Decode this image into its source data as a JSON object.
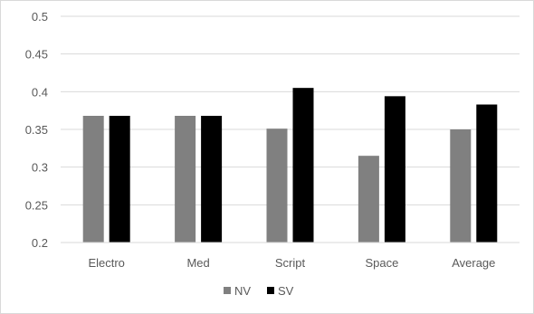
{
  "chart_data": {
    "type": "bar",
    "title": "",
    "xlabel": "",
    "ylabel": "",
    "categories": [
      "Electro",
      "Med",
      "Script",
      "Space",
      "Average"
    ],
    "series": [
      {
        "name": "NV",
        "color": "#808080",
        "values": [
          0.368,
          0.368,
          0.351,
          0.315,
          0.35
        ]
      },
      {
        "name": "SV",
        "color": "#000000",
        "values": [
          0.368,
          0.368,
          0.405,
          0.394,
          0.383
        ]
      }
    ],
    "ylim": [
      0.2,
      0.5
    ],
    "yticks": [
      0.2,
      0.25,
      0.3,
      0.35,
      0.4,
      0.45,
      0.5
    ],
    "ytick_labels": [
      "0.2",
      "0.25",
      "0.3",
      "0.35",
      "0.4",
      "0.45",
      "0.5"
    ],
    "grid": true,
    "grid_color": "#d9d9d9",
    "legend_position": "bottom"
  }
}
